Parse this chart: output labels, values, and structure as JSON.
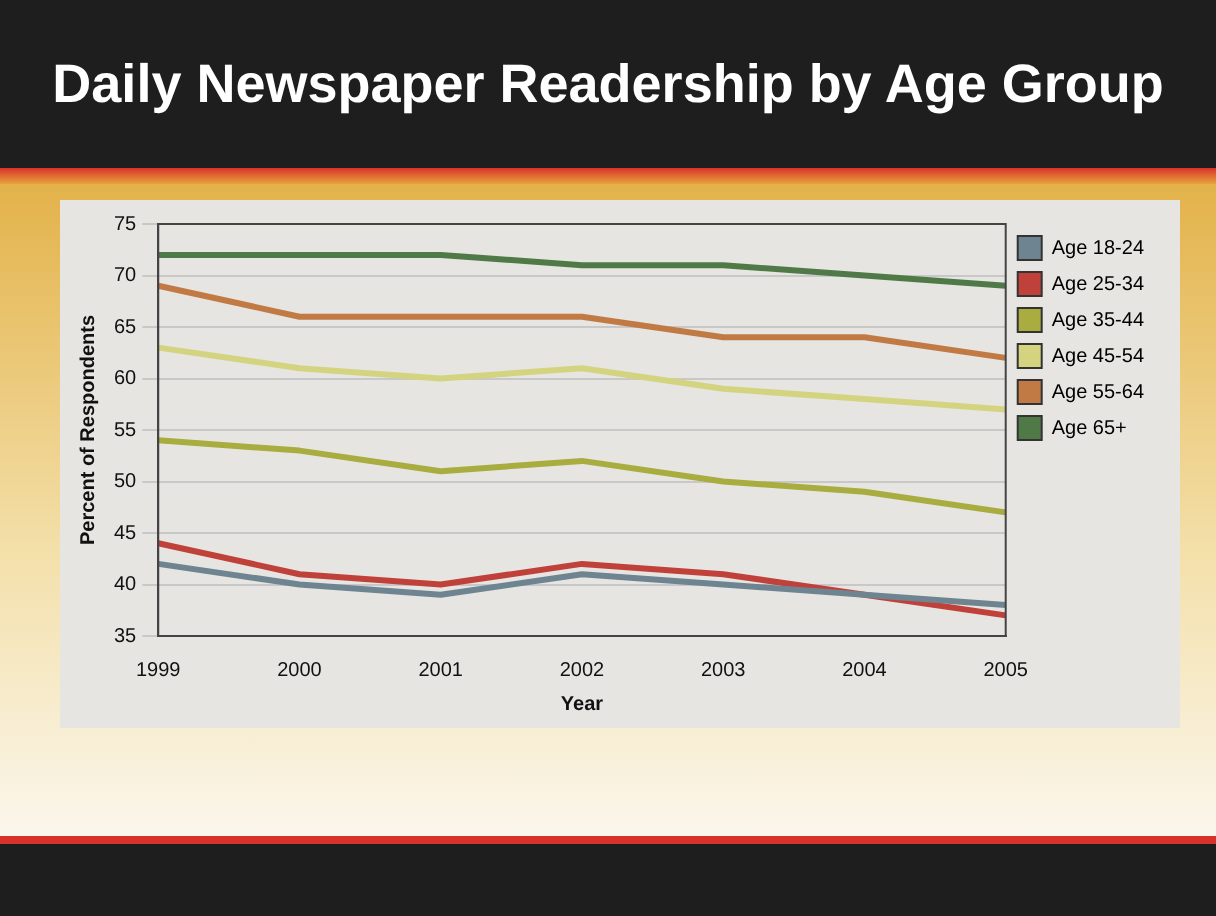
{
  "chart_data": {
    "type": "line",
    "title": "Daily Newspaper Readership by Age Group",
    "xlabel": "Year",
    "ylabel": "Percent of Respondents",
    "categories": [
      "1999",
      "2000",
      "2001",
      "2002",
      "2003",
      "2004",
      "2005"
    ],
    "series": [
      {
        "name": "Age 18-24",
        "color": "#6f8491",
        "values": [
          42,
          40,
          39,
          41,
          40,
          39,
          38
        ]
      },
      {
        "name": "Age 25-34",
        "color": "#c0413a",
        "values": [
          44,
          41,
          40,
          42,
          41,
          39,
          37
        ]
      },
      {
        "name": "Age 35-44",
        "color": "#a9ac3e",
        "values": [
          54,
          53,
          51,
          52,
          50,
          49,
          47
        ]
      },
      {
        "name": "Age 45-54",
        "color": "#d4d480",
        "values": [
          63,
          61,
          60,
          61,
          59,
          58,
          57
        ]
      },
      {
        "name": "Age 55-64",
        "color": "#c27a45",
        "values": [
          69,
          66,
          66,
          66,
          64,
          64,
          62
        ]
      },
      {
        "name": "Age 65+",
        "color": "#4f7a48",
        "values": [
          72,
          72,
          72,
          71,
          71,
          70,
          69
        ]
      }
    ],
    "ylim": [
      35,
      75
    ],
    "yticks": [
      35,
      40,
      45,
      50,
      55,
      60,
      65,
      70,
      75
    ],
    "grid": "y",
    "legend": "right",
    "marker": "none",
    "line_style": "solid"
  }
}
